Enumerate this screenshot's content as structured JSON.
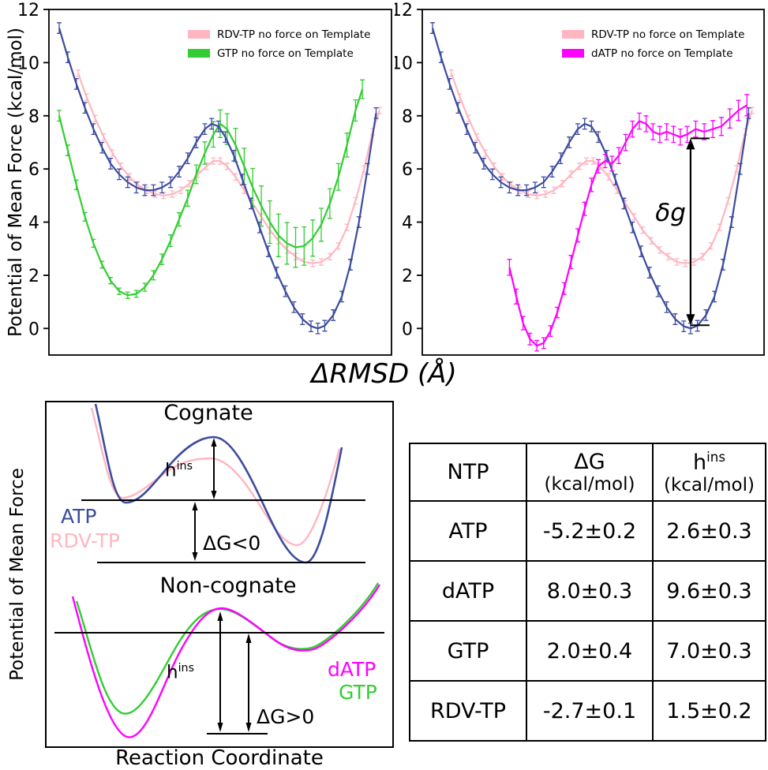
{
  "curves": {
    "atp": {
      "name": "ATP",
      "color": "#3c4c9e",
      "err": 0.2,
      "x": [
        0.03,
        0.055,
        0.08,
        0.105,
        0.13,
        0.155,
        0.18,
        0.205,
        0.23,
        0.255,
        0.28,
        0.305,
        0.33,
        0.355,
        0.38,
        0.405,
        0.43,
        0.455,
        0.475,
        0.495,
        0.515,
        0.54,
        0.565,
        0.59,
        0.615,
        0.64,
        0.665,
        0.69,
        0.715,
        0.74,
        0.765,
        0.785,
        0.805,
        0.83,
        0.855,
        0.88,
        0.905,
        0.93,
        0.955
      ],
      "y": [
        11.3,
        10.2,
        9.2,
        8.3,
        7.5,
        6.8,
        6.2,
        5.8,
        5.5,
        5.3,
        5.2,
        5.2,
        5.3,
        5.5,
        5.9,
        6.4,
        7.0,
        7.5,
        7.7,
        7.6,
        7.2,
        6.5,
        5.6,
        4.7,
        3.8,
        2.9,
        2.1,
        1.4,
        0.8,
        0.35,
        0.08,
        0.0,
        0.1,
        0.5,
        1.2,
        2.4,
        4.0,
        6.0,
        8.1
      ]
    },
    "rdvtp": {
      "name": "RDV-TP",
      "color": "#ffb6c1",
      "err": 0.12,
      "x": [
        0.085,
        0.11,
        0.135,
        0.16,
        0.185,
        0.21,
        0.235,
        0.26,
        0.285,
        0.31,
        0.335,
        0.36,
        0.385,
        0.41,
        0.435,
        0.46,
        0.48,
        0.5,
        0.52,
        0.545,
        0.57,
        0.595,
        0.62,
        0.645,
        0.67,
        0.695,
        0.72,
        0.745,
        0.77,
        0.795,
        0.82,
        0.845,
        0.87,
        0.895,
        0.92,
        0.945,
        0.965
      ],
      "y": [
        9.6,
        8.7,
        7.9,
        7.2,
        6.6,
        6.1,
        5.7,
        5.4,
        5.2,
        5.05,
        5.0,
        5.05,
        5.2,
        5.45,
        5.8,
        6.1,
        6.3,
        6.3,
        6.1,
        5.7,
        5.2,
        4.7,
        4.2,
        3.7,
        3.3,
        2.95,
        2.7,
        2.5,
        2.45,
        2.5,
        2.7,
        3.1,
        3.8,
        4.8,
        6.0,
        7.4,
        8.2
      ]
    },
    "gtp": {
      "name": "GTP",
      "color": "#32cd32",
      "err": [
        0.2,
        0.2,
        0.18,
        0.16,
        0.15,
        0.13,
        0.12,
        0.12,
        0.12,
        0.13,
        0.15,
        0.17,
        0.2,
        0.22,
        0.25,
        0.3,
        0.35,
        0.42,
        0.48,
        0.52,
        0.58,
        0.63,
        0.68,
        0.72,
        0.76,
        0.8,
        0.8,
        0.78,
        0.75,
        0.72,
        0.68,
        0.62,
        0.56,
        0.5,
        0.45,
        0.4,
        0.35
      ],
      "x": [
        0.03,
        0.055,
        0.08,
        0.105,
        0.13,
        0.155,
        0.18,
        0.205,
        0.23,
        0.255,
        0.28,
        0.305,
        0.33,
        0.355,
        0.38,
        0.405,
        0.43,
        0.455,
        0.48,
        0.5,
        0.52,
        0.545,
        0.57,
        0.595,
        0.62,
        0.645,
        0.67,
        0.695,
        0.72,
        0.745,
        0.77,
        0.795,
        0.82,
        0.845,
        0.87,
        0.895,
        0.915
      ],
      "y": [
        8.0,
        6.7,
        5.4,
        4.2,
        3.2,
        2.4,
        1.8,
        1.4,
        1.25,
        1.3,
        1.55,
        2.0,
        2.6,
        3.3,
        4.1,
        4.9,
        5.8,
        6.6,
        7.3,
        7.7,
        7.5,
        6.9,
        6.1,
        5.3,
        4.6,
        4.0,
        3.5,
        3.2,
        3.05,
        3.1,
        3.4,
        3.9,
        4.7,
        5.7,
        6.9,
        8.2,
        9.0
      ]
    },
    "datp": {
      "name": "dATP",
      "color": "#ff00ff",
      "err": [
        0.3,
        0.28,
        0.25,
        0.22,
        0.2,
        0.2,
        0.2,
        0.2,
        0.22,
        0.25,
        0.25,
        0.25,
        0.25,
        0.25,
        0.25,
        0.28,
        0.3,
        0.3,
        0.3,
        0.3,
        0.3,
        0.3,
        0.3,
        0.3,
        0.3,
        0.3,
        0.3,
        0.3,
        0.3,
        0.32,
        0.34,
        0.36,
        0.38,
        0.4
      ],
      "x": [
        0.255,
        0.275,
        0.295,
        0.315,
        0.335,
        0.355,
        0.375,
        0.395,
        0.415,
        0.435,
        0.455,
        0.475,
        0.495,
        0.515,
        0.535,
        0.555,
        0.575,
        0.595,
        0.615,
        0.635,
        0.655,
        0.675,
        0.695,
        0.715,
        0.735,
        0.755,
        0.775,
        0.8,
        0.825,
        0.85,
        0.875,
        0.9,
        0.925,
        0.95
      ],
      "y": [
        2.3,
        1.2,
        0.2,
        -0.4,
        -0.65,
        -0.55,
        -0.1,
        0.6,
        1.5,
        2.5,
        3.5,
        4.5,
        5.4,
        6.1,
        6.3,
        6.2,
        6.5,
        7.0,
        7.5,
        7.8,
        7.7,
        7.4,
        7.3,
        7.4,
        7.3,
        7.2,
        7.3,
        7.5,
        7.4,
        7.5,
        7.6,
        7.9,
        8.2,
        8.4
      ]
    }
  },
  "chart_data": [
    {
      "type": "line",
      "panel": "top-left",
      "ylabel": "Potential of Mean Force (kcal/mol)",
      "xlabel": "ΔRMSD (Å)",
      "ylim": [
        -1,
        12
      ],
      "yticks": [
        0,
        2,
        4,
        6,
        8,
        10,
        12
      ],
      "series": [
        "rdvtp",
        "gtp",
        "atp"
      ],
      "legend": [
        {
          "label": "RDV-TP no force on Template",
          "color": "#ffb6c1"
        },
        {
          "label": "GTP no force on Template",
          "color": "#32cd32"
        }
      ]
    },
    {
      "type": "line",
      "panel": "top-right",
      "ylim": [
        -1,
        12
      ],
      "yticks": [
        0,
        2,
        4,
        6,
        8,
        10,
        12
      ],
      "series": [
        "rdvtp",
        "atp",
        "datp"
      ],
      "legend": [
        {
          "label": "RDV-TP no force on Template",
          "color": "#ffb6c1"
        },
        {
          "label": "dATP no force on Template",
          "color": "#ff00ff"
        }
      ],
      "annotation": {
        "label": "δg",
        "x": 0.785,
        "from": 7.15,
        "to": 0.12
      }
    },
    {
      "type": "table",
      "headers": [
        {
          "line1": "NTP"
        },
        {
          "line1": "ΔG",
          "line2": "(kcal/mol)"
        },
        {
          "line1": "h",
          "sup": "ins",
          "line2": "(kcal/mol)"
        }
      ],
      "rows": [
        [
          "ATP",
          "-5.2±0.2",
          "2.6±0.3"
        ],
        [
          "dATP",
          "8.0±0.3",
          "9.6±0.3"
        ],
        [
          "GTP",
          "2.0±0.4",
          "7.0±0.3"
        ],
        [
          "RDV-TP",
          "-2.7±0.1",
          "1.5±0.2"
        ]
      ]
    }
  ],
  "schematic": {
    "cognate_title": "Cognate",
    "noncognate_title": "Non-cognate",
    "atp": "ATP",
    "rdvtp": "RDV-TP",
    "datp": "dATP",
    "gtp": "GTP",
    "hins_base": "h",
    "hins_sup": "ins",
    "dg_neg": "ΔG<0",
    "dg_pos": "ΔG>0",
    "xlabel": "Reaction Coordinate",
    "ylabel": "Potential of Mean Force"
  }
}
